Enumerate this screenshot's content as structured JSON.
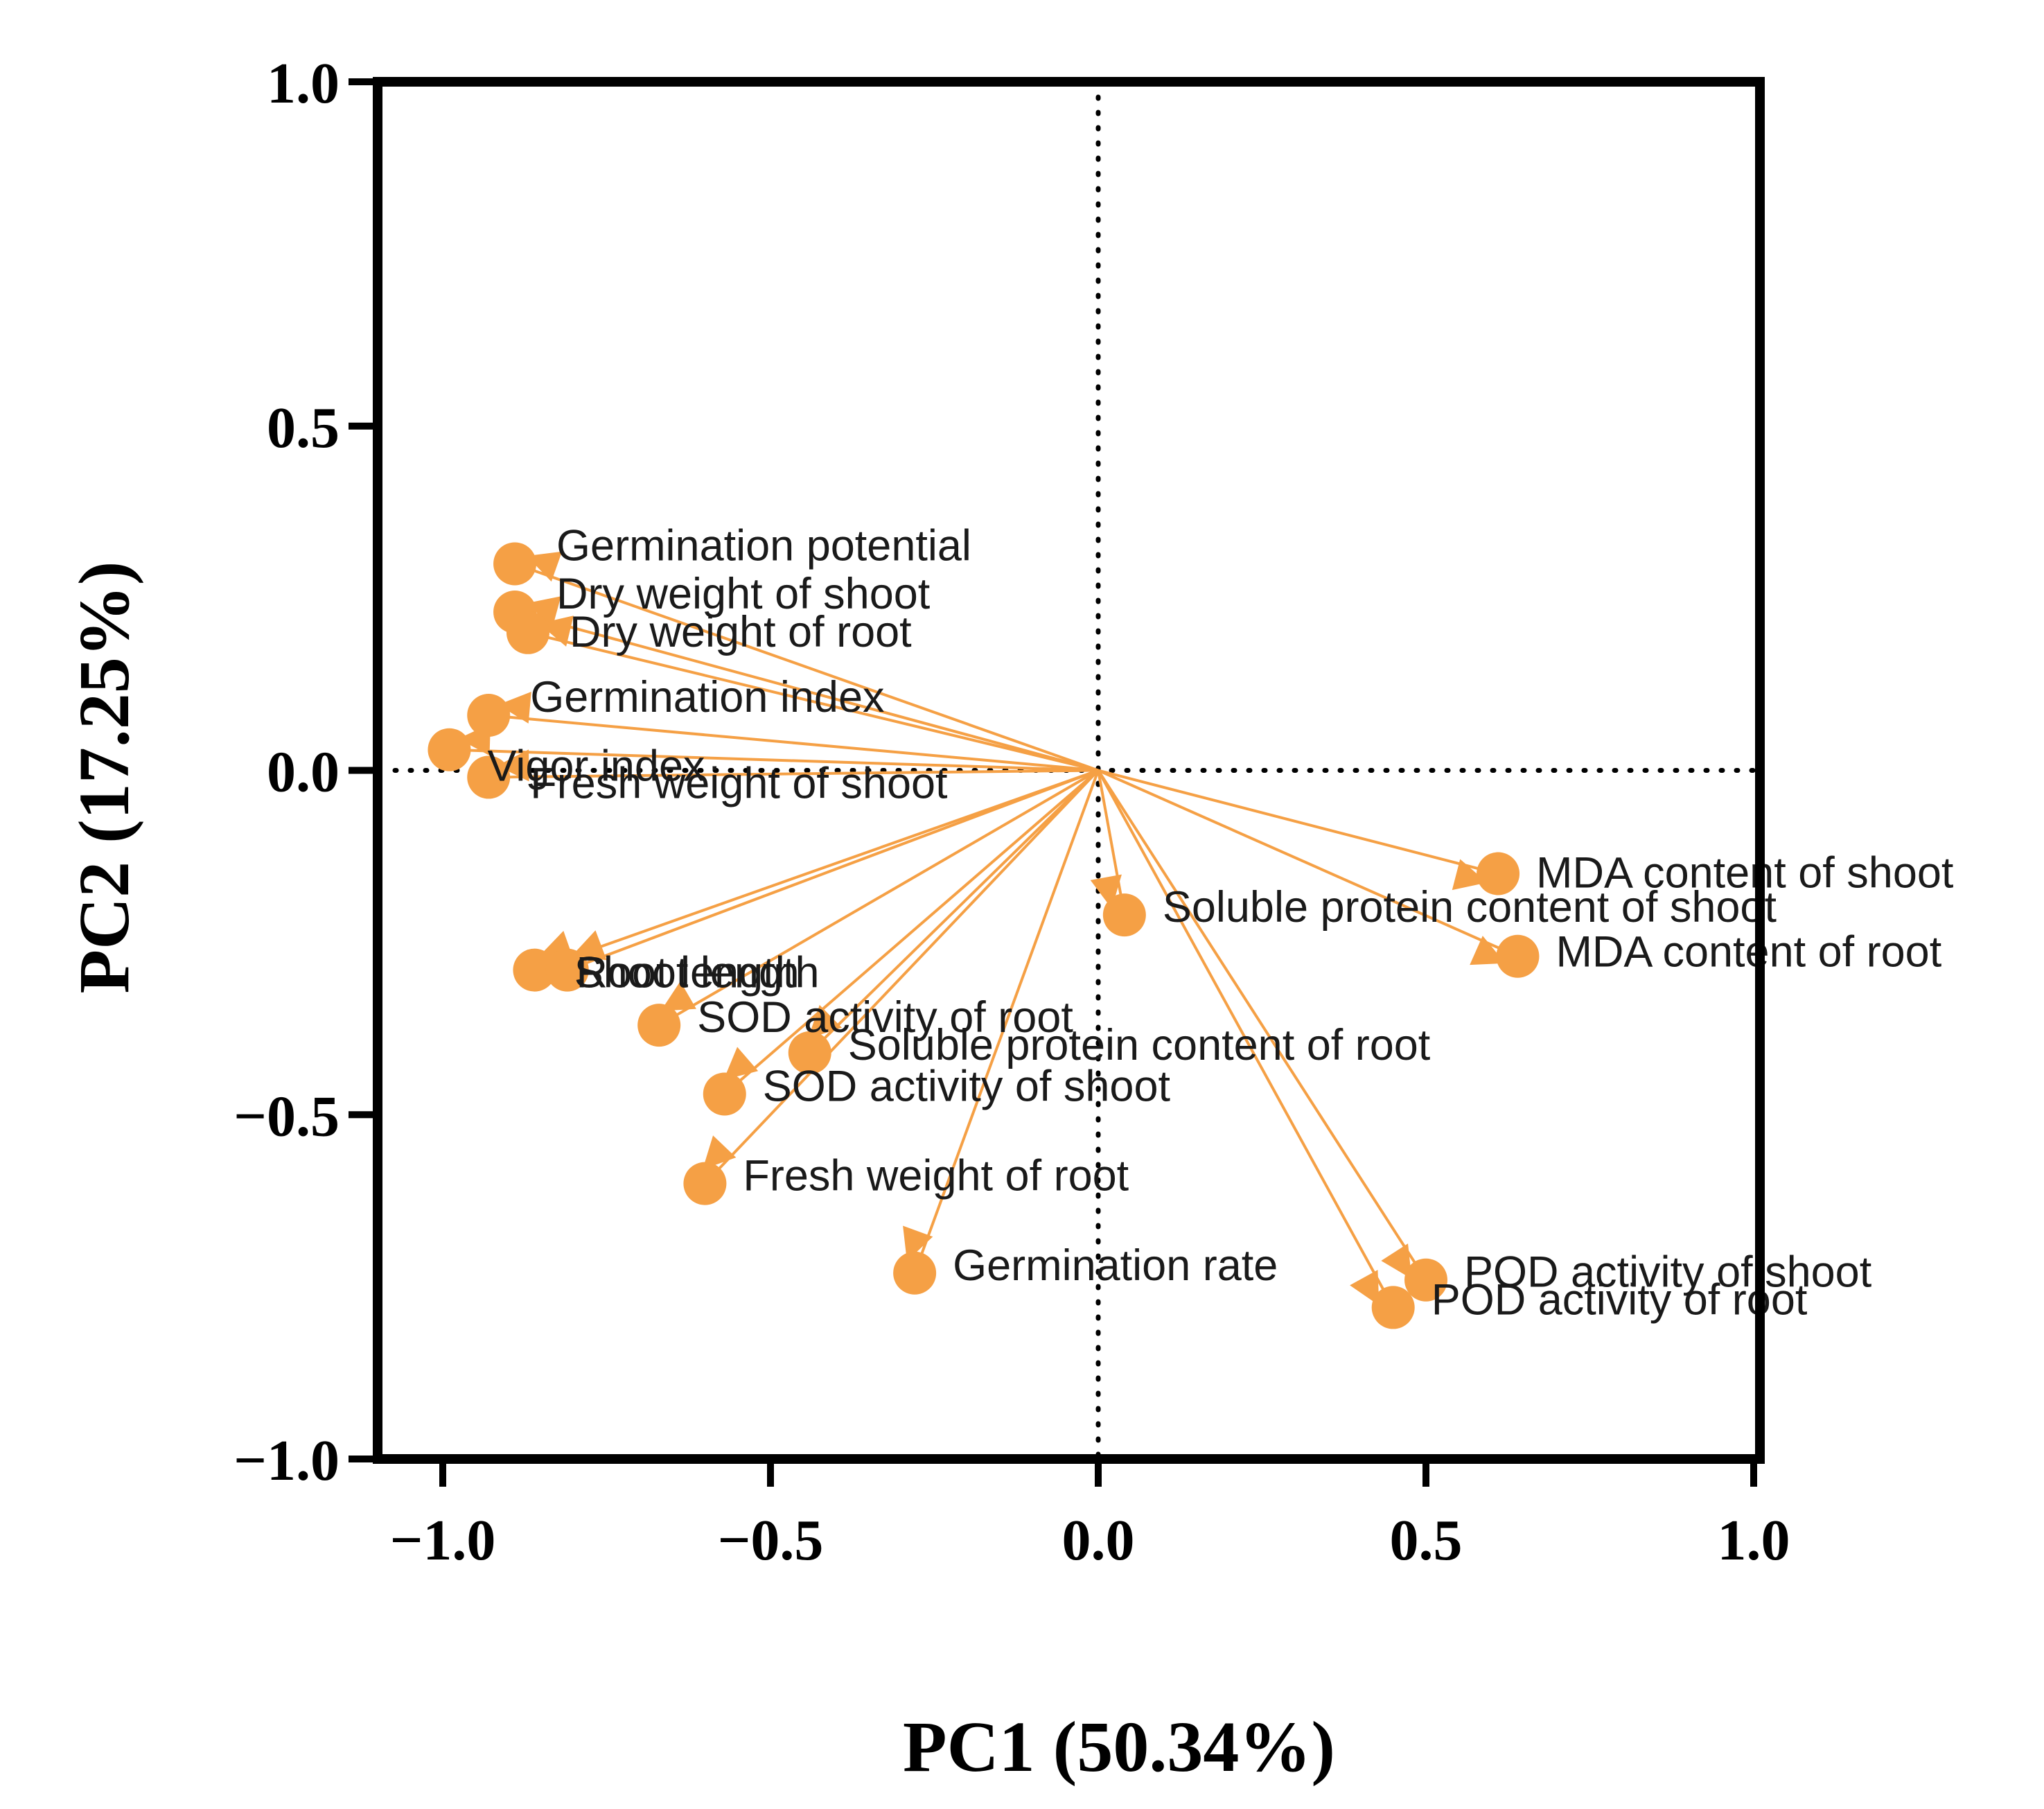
{
  "chart_data": {
    "type": "scatter",
    "subtype": "pca-loading-biplot",
    "title": "",
    "xlabel": "PC1 (50.34%)",
    "ylabel": "PC2 (17.25%)",
    "xlim": [
      -1.1,
      1.0
    ],
    "ylim": [
      -1.0,
      1.0
    ],
    "xticks": [
      -1.0,
      -0.5,
      0.0,
      0.5,
      1.0
    ],
    "yticks": [
      -1.0,
      -0.5,
      0.0,
      0.5,
      1.0
    ],
    "xtick_labels": [
      "−1.0",
      "−0.5",
      "0.0",
      "0.5",
      "1.0"
    ],
    "ytick_labels": [
      "−1.0",
      "−0.5",
      "0.0",
      "0.5",
      "1.0"
    ],
    "reference_lines": {
      "x": 0,
      "y": 0,
      "style": "dotted"
    },
    "color": "#f5a045",
    "grid": false,
    "variables": [
      {
        "name": "Germination potential",
        "x": -0.89,
        "y": 0.3
      },
      {
        "name": "Dry weight of shoot",
        "x": -0.89,
        "y": 0.23
      },
      {
        "name": "Dry weight of root",
        "x": -0.87,
        "y": 0.2
      },
      {
        "name": "Germination index",
        "x": -0.93,
        "y": 0.08
      },
      {
        "name": "Vigor index",
        "x": -0.99,
        "y": 0.03
      },
      {
        "name": "Fresh weight of shoot",
        "x": -0.93,
        "y": -0.01
      },
      {
        "name": "Root length",
        "x": -0.86,
        "y": -0.29
      },
      {
        "name": "Shoot length",
        "x": -0.81,
        "y": -0.29
      },
      {
        "name": "SOD activity of root",
        "x": -0.67,
        "y": -0.37
      },
      {
        "name": "Soluble protein content of root",
        "x": -0.44,
        "y": -0.41
      },
      {
        "name": "SOD activity of shoot",
        "x": -0.57,
        "y": -0.47
      },
      {
        "name": "Fresh weight of root",
        "x": -0.6,
        "y": -0.6
      },
      {
        "name": "Germination rate",
        "x": -0.28,
        "y": -0.73
      },
      {
        "name": "Soluble protein content of shoot",
        "x": 0.04,
        "y": -0.21
      },
      {
        "name": "MDA content of shoot",
        "x": 0.61,
        "y": -0.15
      },
      {
        "name": "MDA content of root",
        "x": 0.64,
        "y": -0.27
      },
      {
        "name": "POD activity of shoot",
        "x": 0.5,
        "y": -0.74
      },
      {
        "name": "POD activity of root",
        "x": 0.45,
        "y": -0.78
      }
    ]
  }
}
